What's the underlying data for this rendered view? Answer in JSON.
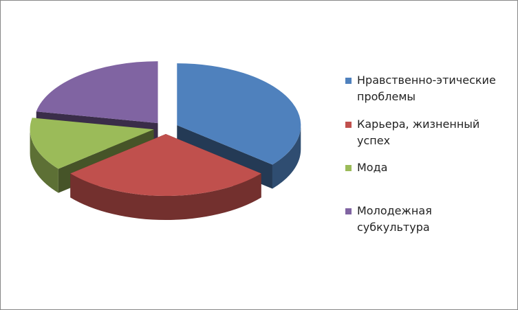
{
  "chart_data": {
    "type": "pie",
    "three_d": true,
    "exploded": true,
    "categories": [
      "Нравственно-этические проблемы",
      "Карьера, жизненный успех",
      "Мода",
      "Молодежная субкультура"
    ],
    "values": [
      36,
      28,
      14,
      22
    ],
    "colors": [
      "#4f81bd",
      "#c0504d",
      "#9bbb59",
      "#8064a2"
    ],
    "legend": "right"
  }
}
